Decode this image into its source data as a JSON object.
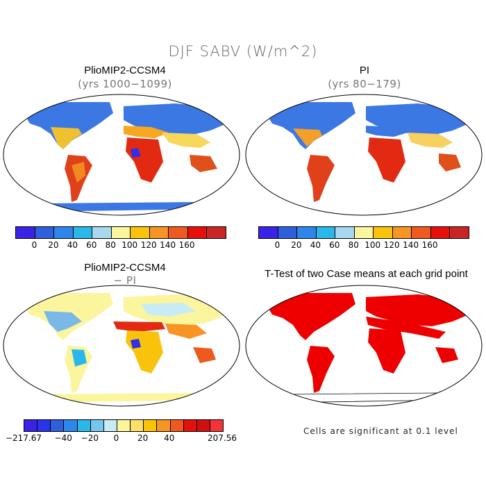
{
  "title": "DJF SABV (W/m^2)",
  "panels": {
    "p1": {
      "title": "PlioMIP2-CCSM4",
      "subtitle": "(yrs 1000−1099)"
    },
    "p2": {
      "title": "PI",
      "subtitle": "(yrs 80−179)"
    },
    "p3": {
      "title": "PlioMIP2-CCSM4",
      "subtitle": "− PI"
    },
    "p4": {
      "title": "T-Test of two Case means at each grid point",
      "note": "Cells are significant at 0.1 level"
    }
  },
  "colorbars": {
    "absolute": {
      "colors": [
        "#3a22e6",
        "#2e5fdc",
        "#2f86ea",
        "#2ab8ea",
        "#a8d8ef",
        "#fbf59e",
        "#f9c30c",
        "#f79424",
        "#ee5a1d",
        "#e70f0a",
        "#c92525"
      ],
      "labels": [
        "0",
        "20",
        "40",
        "60",
        "80",
        "100",
        "120",
        "140",
        "160"
      ]
    },
    "difference": {
      "colors": [
        "#3a22e6",
        "#2833ea",
        "#2e5fdc",
        "#2f86ea",
        "#2ab8ea",
        "#75c7ee",
        "#c8ecf5",
        "#fbf59e",
        "#fce06a",
        "#f9c30c",
        "#f79424",
        "#ee5a1d",
        "#e70f0a",
        "#d01010",
        "#f43434"
      ],
      "labels": [
        "−217.67",
        "−40",
        "−20",
        "0",
        "20",
        "40",
        "207.56"
      ]
    }
  }
}
